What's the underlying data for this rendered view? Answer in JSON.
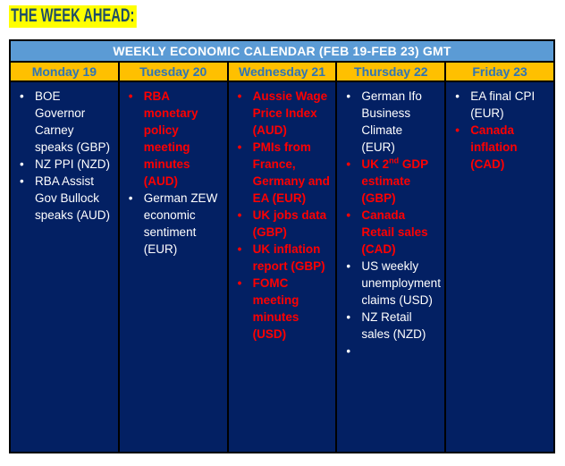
{
  "page_title": "THE WEEK AHEAD:",
  "table": {
    "header": "WEEKLY ECONOMIC CALENDAR (FEB 19-FEB 23) GMT",
    "columns": [
      {
        "day": "Monday 19",
        "items": [
          {
            "text": "BOE Governor Carney speaks (GBP)",
            "style": "white"
          },
          {
            "text": "NZ PPI (NZD)",
            "style": "white"
          },
          {
            "text": "RBA Assist Gov Bullock speaks (AUD)",
            "style": "white"
          }
        ]
      },
      {
        "day": "Tuesday 20",
        "items": [
          {
            "text": "RBA monetary policy meeting minutes (AUD)",
            "style": "red"
          },
          {
            "text": "German ZEW economic sentiment (EUR)",
            "style": "white"
          }
        ]
      },
      {
        "day": "Wednesday 21",
        "items": [
          {
            "text": "Aussie Wage Price Index (AUD)",
            "style": "red"
          },
          {
            "text": "PMIs from France, Germany and EA (EUR)",
            "style": "red"
          },
          {
            "text": "UK jobs data (GBP)",
            "style": "red"
          },
          {
            "text": "UK inflation report (GBP)",
            "style": "red"
          },
          {
            "text": "FOMC meeting minutes (USD)",
            "style": "red"
          }
        ]
      },
      {
        "day": "Thursday 22",
        "items": [
          {
            "text": "German Ifo Business Climate (EUR)",
            "style": "white"
          },
          {
            "text": "UK 2^{nd} GDP estimate (GBP)",
            "style": "red"
          },
          {
            "text": "Canada Retail sales (CAD)",
            "style": "red"
          },
          {
            "text": "US weekly unemployment claims (USD)",
            "style": "white"
          },
          {
            "text": "NZ Retail sales (NZD)",
            "style": "white"
          },
          {
            "text": "",
            "style": "white"
          }
        ]
      },
      {
        "day": "Friday 23",
        "items": [
          {
            "text": "EA final CPI (EUR)",
            "style": "white"
          },
          {
            "text": "Canada inflation (CAD)",
            "style": "red"
          }
        ]
      }
    ]
  },
  "colors": {
    "title_highlight": "#FFFF00",
    "title_text": "#1F4E66",
    "header_band": "#5B9BD5",
    "day_band": "#FFC000",
    "day_text": "#2E75B6",
    "cell_navy": "#032063",
    "event_high_impact": "#FF0000",
    "event_normal": "#FFFFFF",
    "border": "#000000"
  }
}
